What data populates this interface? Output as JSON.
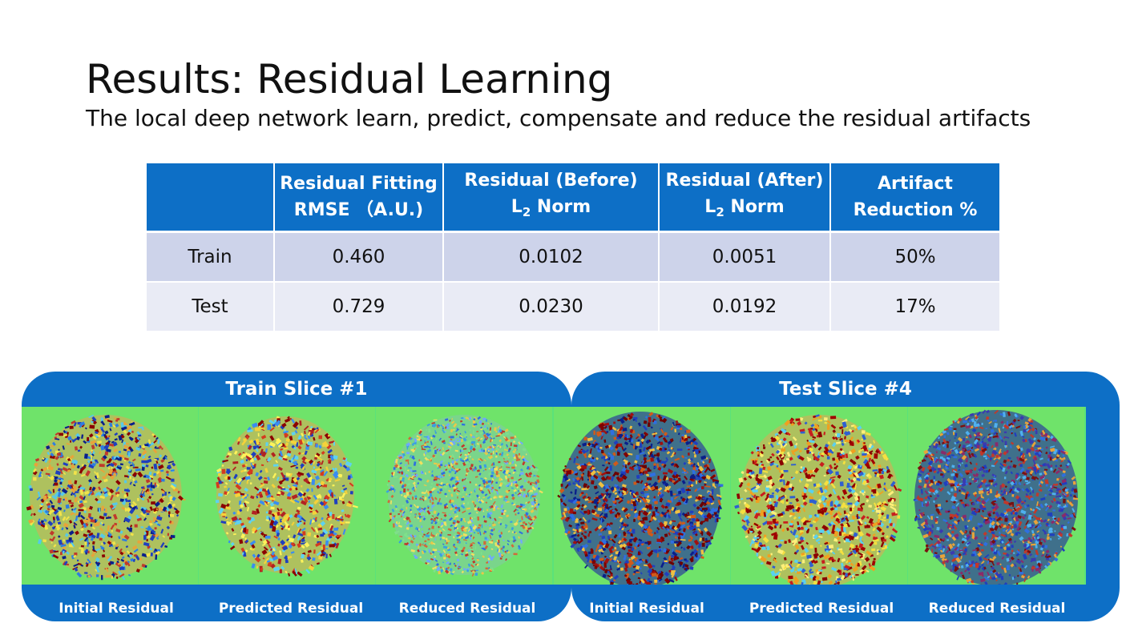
{
  "slide": {
    "title": "Results: Residual Learning",
    "subtitle": "The local deep network learn, predict, compensate and reduce the residual artifacts"
  },
  "table": {
    "headers": [
      {
        "line1": "",
        "line2": "",
        "sub": "",
        "line2b": ""
      },
      {
        "line1": "Residual Fitting",
        "line2": "RMSE （A.U.)",
        "sub": "",
        "line2b": ""
      },
      {
        "line1": "Residual (Before)",
        "line2": "L",
        "sub": "2",
        "line2b": " Norm"
      },
      {
        "line1": "Residual (After)",
        "line2": "L",
        "sub": "2",
        "line2b": " Norm"
      },
      {
        "line1": "Artifact",
        "line2": "Reduction %",
        "sub": "",
        "line2b": ""
      }
    ],
    "rows": [
      {
        "label": "Train",
        "cells": [
          "0.460",
          "0.0102",
          "0.0051",
          "50%"
        ]
      },
      {
        "label": "Test",
        "cells": [
          "0.729",
          "0.0230",
          "0.0192",
          "17%"
        ]
      }
    ]
  },
  "panels": [
    {
      "title": "Train Slice #1",
      "captions": [
        "Initial Residual",
        "Predicted Residual",
        "Reduced Residual"
      ]
    },
    {
      "title": "Test Slice #4",
      "captions": [
        "Initial Residual",
        "Predicted Residual",
        "Reduced Residual"
      ]
    }
  ],
  "colors": {
    "accent": "#0d6fc6",
    "row_odd": "#cdd3ea",
    "row_even": "#e9ebf5",
    "map_background": "#6fe36a"
  }
}
